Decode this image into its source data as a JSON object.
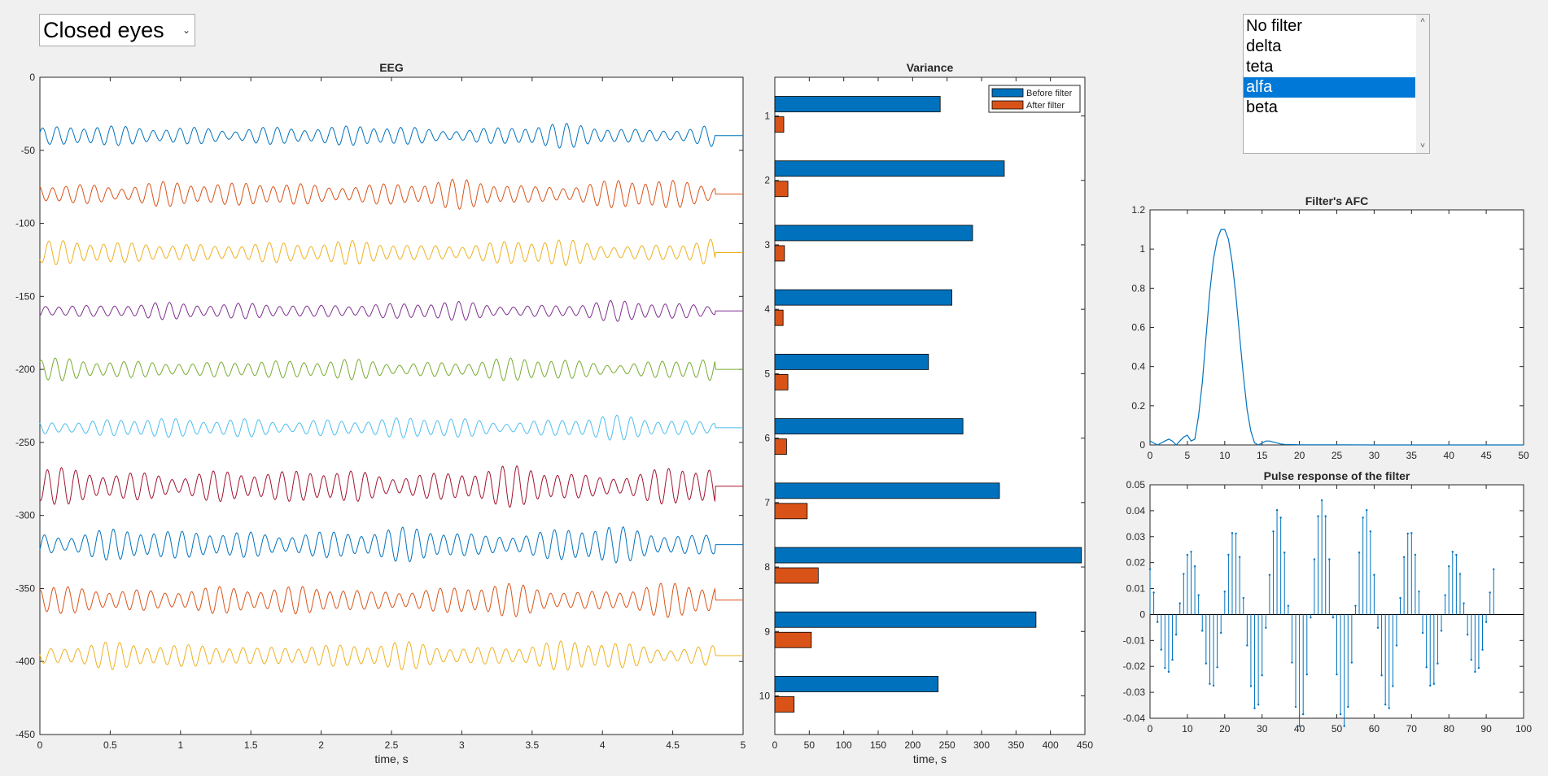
{
  "controls": {
    "record_select": {
      "value": "Closed eyes"
    },
    "filter_list": {
      "items": [
        "No filter",
        "delta",
        "teta",
        "alfa",
        "beta"
      ],
      "selected_index": 3
    }
  },
  "colors": {
    "background": "#f0f0f0",
    "selection": "#0078d7",
    "before_filter": "#0072bd",
    "after_filter": "#d95319",
    "line_palette": [
      "#0072bd",
      "#d95319",
      "#edb120",
      "#7e2f8e",
      "#77ac30",
      "#4dbeee",
      "#a2142f"
    ]
  },
  "chart_data": [
    {
      "id": "eeg",
      "type": "line",
      "title": "EEG",
      "xlabel": "time, s",
      "ylabel": "",
      "xlim": [
        0,
        5
      ],
      "ylim": [
        -450,
        0
      ],
      "xticks": [
        0,
        0.5,
        1,
        1.5,
        2,
        2.5,
        3,
        3.5,
        4,
        4.5,
        5
      ],
      "yticks": [
        0,
        -50,
        -100,
        -150,
        -200,
        -250,
        -300,
        -350,
        -400,
        -450
      ],
      "grid": false,
      "series": [
        {
          "offset": -40,
          "amplitude": 7
        },
        {
          "offset": -80,
          "amplitude": 9
        },
        {
          "offset": -120,
          "amplitude": 8
        },
        {
          "offset": -160,
          "amplitude": 6
        },
        {
          "offset": -200,
          "amplitude": 7
        },
        {
          "offset": -240,
          "amplitude": 7
        },
        {
          "offset": -280,
          "amplitude": 12
        },
        {
          "offset": -320,
          "amplitude": 11
        },
        {
          "offset": -358,
          "amplitude": 10
        },
        {
          "offset": -396,
          "amplitude": 9
        }
      ]
    },
    {
      "id": "variance",
      "type": "bar",
      "orientation": "horizontal",
      "title": "Variance",
      "xlabel": "time, s",
      "ylabel": "",
      "xlim": [
        0,
        450
      ],
      "xticks": [
        0,
        50,
        100,
        150,
        200,
        250,
        300,
        350,
        400,
        450
      ],
      "categories": [
        "1",
        "2",
        "3",
        "4",
        "5",
        "6",
        "7",
        "8",
        "9",
        "10"
      ],
      "legend_position": "top-right",
      "series": [
        {
          "name": "Before filter",
          "values": [
            240,
            333,
            287,
            257,
            223,
            273,
            326,
            445,
            379,
            237
          ]
        },
        {
          "name": "After filter",
          "values": [
            13,
            19,
            14,
            12,
            19,
            17,
            47,
            63,
            53,
            28
          ]
        }
      ]
    },
    {
      "id": "afc",
      "type": "line",
      "title": "Filter's AFC",
      "xlabel": "",
      "ylabel": "",
      "xlim": [
        0,
        50
      ],
      "ylim": [
        0,
        1.2
      ],
      "xticks": [
        0,
        5,
        10,
        15,
        20,
        25,
        30,
        35,
        40,
        45,
        50
      ],
      "yticks": [
        0,
        0.2,
        0.4,
        0.6,
        0.8,
        1,
        1.2
      ],
      "x": [
        0,
        0.5,
        1,
        1.5,
        2,
        2.5,
        3,
        3.5,
        4,
        4.5,
        5,
        5.5,
        6,
        6.5,
        7,
        7.5,
        8,
        8.5,
        9,
        9.5,
        10,
        10.5,
        11,
        11.5,
        12,
        12.5,
        13,
        13.5,
        14,
        14.5,
        15,
        15.5,
        16,
        16.5,
        17,
        17.5,
        18,
        19,
        20,
        25,
        30,
        35,
        40,
        45,
        50
      ],
      "y": [
        0.02,
        0.01,
        0.0,
        0.01,
        0.02,
        0.03,
        0.02,
        0.0,
        0.02,
        0.04,
        0.05,
        0.02,
        0.03,
        0.15,
        0.32,
        0.55,
        0.78,
        0.95,
        1.05,
        1.1,
        1.1,
        1.05,
        0.93,
        0.76,
        0.55,
        0.35,
        0.18,
        0.07,
        0.01,
        0.0,
        0.01,
        0.02,
        0.02,
        0.015,
        0.01,
        0.005,
        0.003,
        0.002,
        0.001,
        0.001,
        0.0,
        0.0,
        0.0,
        0.0,
        0.0
      ]
    },
    {
      "id": "pulse",
      "type": "stem",
      "title": "Pulse response of the filter",
      "xlabel": "",
      "ylabel": "",
      "xlim": [
        0,
        100
      ],
      "ylim": [
        -0.04,
        0.05
      ],
      "xticks": [
        0,
        10,
        20,
        30,
        40,
        50,
        60,
        70,
        80,
        90,
        100
      ],
      "yticks": [
        0.05,
        0.04,
        0.03,
        0.02,
        0.01,
        0,
        -0.01,
        -0.02,
        -0.03,
        -0.04
      ],
      "center": 46,
      "length": 93,
      "peak": 0.044,
      "period": 11.8
    }
  ]
}
